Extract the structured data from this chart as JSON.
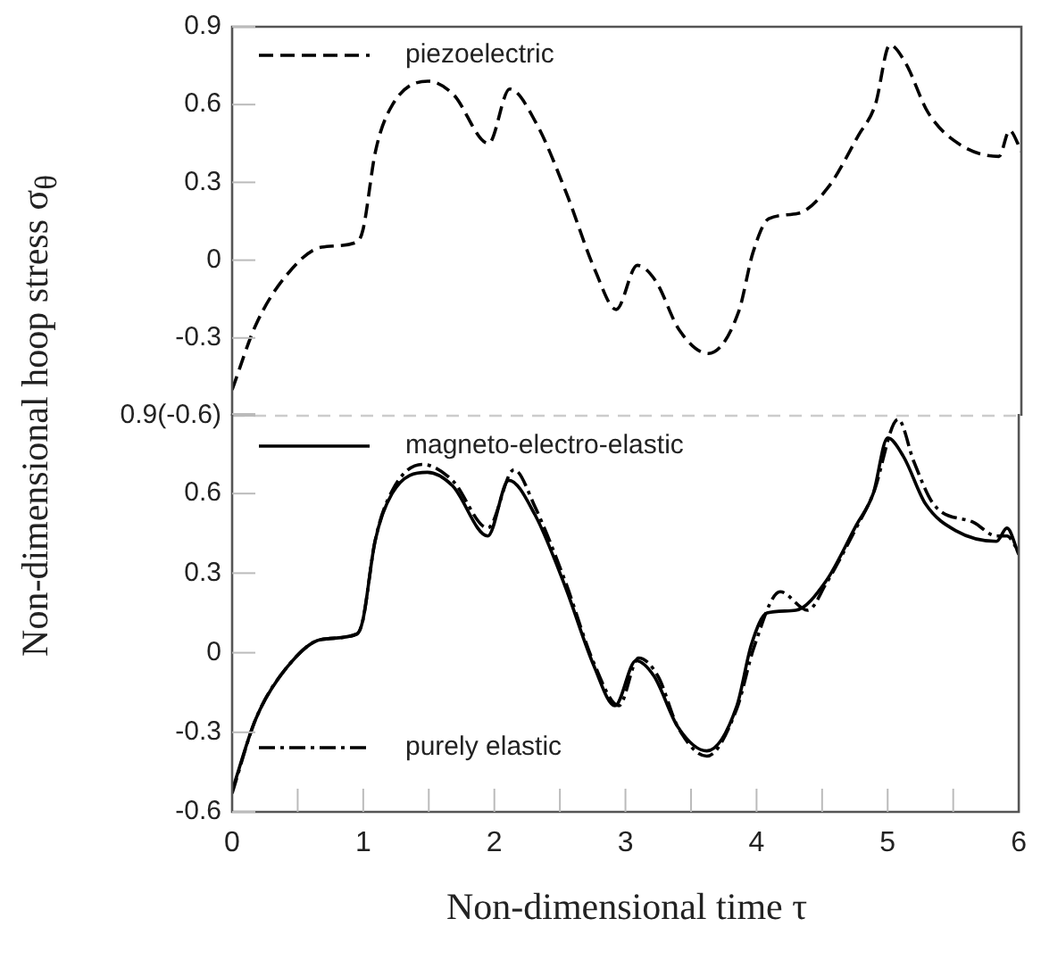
{
  "chart_data": [
    {
      "type": "line",
      "ylabel": "Non-dimensional hoop stress σ$_{θ}$",
      "tick_labels": "y",
      "legend": "top left",
      "xlim": [
        0,
        6
      ],
      "ylim": [
        -0.6,
        0.9
      ],
      "yticks": [
        {
          "value": -0.6,
          "label": "0.9(-0.6)"
        },
        -0.3,
        0,
        0.3,
        0.6,
        0.9
      ],
      "series": [
        {
          "name": "piezoelectric",
          "color": "#000000",
          "line_style": "dashed",
          "x": [
            0,
            0.18,
            0.41,
            0.68,
            0.95,
            0.996,
            1.09,
            1.22,
            1.49,
            1.68,
            1.95,
            2.11,
            2.31,
            2.54,
            2.76,
            2.92,
            3.08,
            3.22,
            3.4,
            3.62,
            3.85,
            3.96,
            4.08,
            4.3,
            4.53,
            4.76,
            4.89,
            5.0,
            5.12,
            5.29,
            5.52,
            5.83,
            5.91,
            6.0
          ],
          "values": [
            -0.5,
            -0.25,
            -0.06,
            0.05,
            0.07,
            0.12,
            0.42,
            0.6,
            0.69,
            0.64,
            0.45,
            0.66,
            0.53,
            0.26,
            -0.04,
            -0.19,
            -0.02,
            -0.08,
            -0.27,
            -0.36,
            -0.2,
            0.03,
            0.16,
            0.18,
            0.28,
            0.48,
            0.6,
            0.83,
            0.76,
            0.57,
            0.45,
            0.4,
            0.5,
            0.42
          ]
        }
      ]
    },
    {
      "type": "line",
      "xlabel": "Non-dimensional time τ",
      "legend": "left",
      "xlim": [
        0,
        6
      ],
      "ylim": [
        -0.6,
        0.9
      ],
      "xticks": [
        0,
        {
          "value": 0.5,
          "label": null
        },
        1,
        {
          "value": 1.5,
          "label": null
        },
        2,
        {
          "value": 2.5,
          "label": null
        },
        3,
        {
          "value": 3.5,
          "label": null
        },
        4,
        {
          "value": 4.5,
          "label": null
        },
        5,
        {
          "value": 5.5,
          "label": null
        },
        6
      ],
      "yticks": [
        -0.6,
        -0.3,
        0,
        0.3,
        0.6,
        {
          "value": 0.9,
          "label": null
        }
      ],
      "series": [
        {
          "name": "magneto-electro-elastic",
          "color": "#000000",
          "line_style": "solid",
          "x": [
            0,
            0.18,
            0.41,
            0.68,
            0.95,
            0.996,
            1.09,
            1.22,
            1.49,
            1.68,
            1.95,
            2.11,
            2.31,
            2.54,
            2.76,
            2.92,
            3.08,
            3.22,
            3.4,
            3.62,
            3.85,
            3.96,
            4.08,
            4.3,
            4.53,
            4.76,
            4.89,
            5.0,
            5.12,
            5.29,
            5.52,
            5.83,
            5.91,
            6.0
          ],
          "values": [
            -0.52,
            -0.25,
            -0.06,
            0.05,
            0.07,
            0.12,
            0.42,
            0.6,
            0.68,
            0.63,
            0.44,
            0.65,
            0.52,
            0.25,
            -0.05,
            -0.2,
            -0.03,
            -0.09,
            -0.28,
            -0.37,
            -0.2,
            0.03,
            0.15,
            0.16,
            0.27,
            0.48,
            0.6,
            0.81,
            0.74,
            0.56,
            0.46,
            0.42,
            0.47,
            0.37
          ]
        },
        {
          "name": "purely elastic",
          "color": "#000000",
          "line_style": "dashdot",
          "x": [
            0,
            0.18,
            0.41,
            0.68,
            0.95,
            0.996,
            1.09,
            1.22,
            1.45,
            1.68,
            1.95,
            2.15,
            2.31,
            2.54,
            2.76,
            2.95,
            3.1,
            3.25,
            3.4,
            3.62,
            3.85,
            3.98,
            4.18,
            4.39,
            4.53,
            4.76,
            4.89,
            5.08,
            5.2,
            5.35,
            5.66,
            5.83,
            5.91,
            6.0
          ],
          "values": [
            -0.53,
            -0.25,
            -0.06,
            0.05,
            0.07,
            0.12,
            0.42,
            0.61,
            0.71,
            0.65,
            0.47,
            0.69,
            0.55,
            0.27,
            -0.04,
            -0.2,
            -0.02,
            -0.09,
            -0.28,
            -0.39,
            -0.21,
            0.02,
            0.23,
            0.16,
            0.26,
            0.47,
            0.6,
            0.88,
            0.72,
            0.56,
            0.49,
            0.44,
            0.44,
            0.38
          ]
        }
      ]
    }
  ]
}
